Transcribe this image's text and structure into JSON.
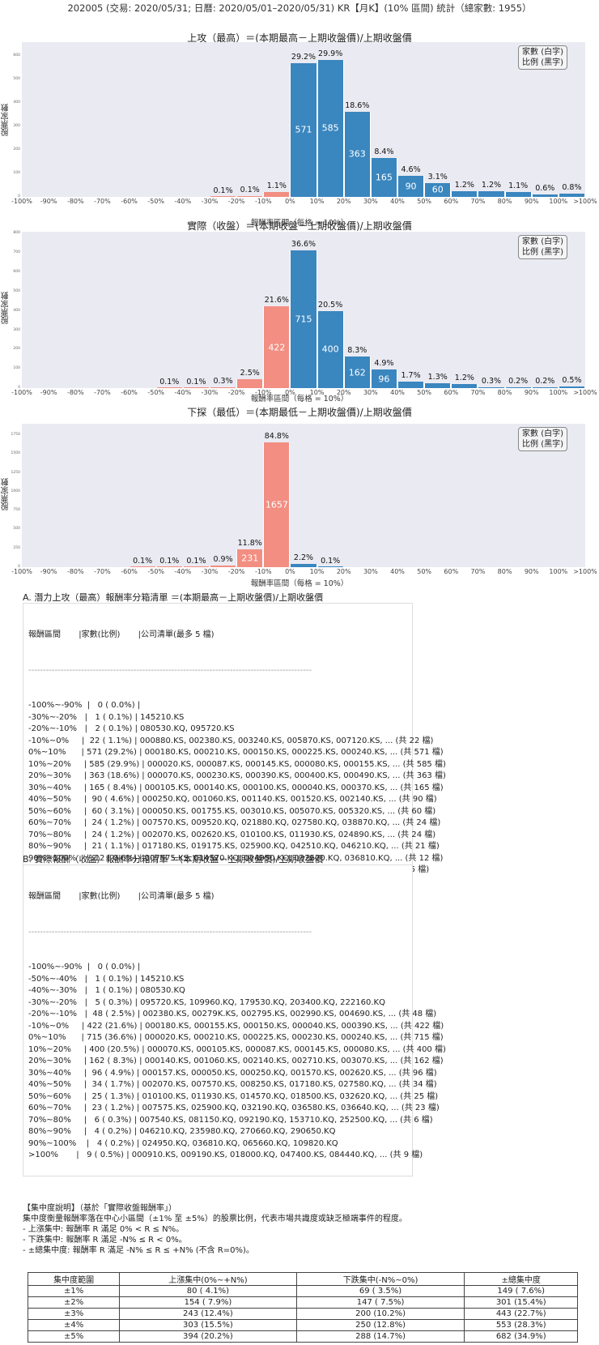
{
  "page": {
    "title": "202005 (交易: 2020/05/31; 日曆: 2020/05/01–2020/05/31) KR【月K】(10% 區間) 統計（總家數: 1955）"
  },
  "legend": {
    "line1": "家數 (白字)",
    "line2": "比例 (黑字)"
  },
  "axis": {
    "ylabel": "股票家數",
    "xlabel": "報酬率區間（每格 = 10%）"
  },
  "colors": {
    "positive": "#3a86bf",
    "negative": "#f28e82",
    "plot_bg": "#eaeaf2"
  },
  "chart_data": [
    {
      "type": "bar",
      "title": "上攻（最高）＝(本期最高－上期收盤價)/上期收盤價",
      "xlabel": "報酬率區間（每格 = 10%）",
      "ylabel": "股票家數",
      "ylim": [
        0,
        660
      ],
      "yticks": [
        0,
        100,
        200,
        300,
        400,
        500,
        600
      ],
      "categories": [
        "-100%~-90%",
        "-90%~-80%",
        "-80%~-70%",
        "-70%~-60%",
        "-60%~-50%",
        "-50%~-40%",
        "-40%~-30%",
        "-30%~-20%",
        "-20%~-10%",
        "-10%~0%",
        "0%~10%",
        "10%~20%",
        "20%~30%",
        "30%~40%",
        "40%~50%",
        "50%~60%",
        "60%~70%",
        "70%~80%",
        "80%~90%",
        "90%~100%",
        ">100%"
      ],
      "values": [
        0,
        0,
        0,
        0,
        0,
        0,
        0,
        1,
        2,
        22,
        571,
        585,
        363,
        165,
        90,
        60,
        24,
        24,
        21,
        12,
        15
      ],
      "percent_labels": [
        "",
        "",
        "",
        "",
        "",
        "",
        "",
        "0.1%",
        "0.1%",
        "1.1%",
        "29.2%",
        "29.9%",
        "18.6%",
        "8.4%",
        "4.6%",
        "3.1%",
        "1.2%",
        "1.2%",
        "1.1%",
        "0.6%",
        "0.8%"
      ],
      "xtick_labels": [
        "-100%",
        "-90%",
        "-80%",
        "-70%",
        "-60%",
        "-50%",
        "-40%",
        "-30%",
        "-20%",
        "-10%",
        "0%",
        "10%",
        "20%",
        "30%",
        "40%",
        "50%",
        "60%",
        "70%",
        "80%",
        "90%",
        "100%",
        ">100%"
      ],
      "legend": [
        "家數 (白字)",
        "比例 (黑字)"
      ],
      "grid": false
    },
    {
      "type": "bar",
      "title": "實際（收盤）＝(本期收盤－上期收盤價)/上期收盤價",
      "xlabel": "報酬率區間（每格 = 10%）",
      "ylabel": "股票家數",
      "ylim": [
        0,
        810
      ],
      "yticks": [
        0,
        100,
        200,
        300,
        400,
        500,
        600,
        700,
        800
      ],
      "categories": [
        "-100%~-90%",
        "-90%~-80%",
        "-80%~-70%",
        "-70%~-60%",
        "-60%~-50%",
        "-50%~-40%",
        "-40%~-30%",
        "-30%~-20%",
        "-20%~-10%",
        "-10%~0%",
        "0%~10%",
        "10%~20%",
        "20%~30%",
        "30%~40%",
        "40%~50%",
        "50%~60%",
        "60%~70%",
        "70%~80%",
        "80%~90%",
        "90%~100%",
        ">100%"
      ],
      "values": [
        0,
        0,
        0,
        0,
        0,
        1,
        1,
        5,
        48,
        422,
        715,
        400,
        162,
        96,
        34,
        25,
        23,
        6,
        4,
        4,
        9
      ],
      "percent_labels": [
        "",
        "",
        "",
        "",
        "",
        "0.1%",
        "0.1%",
        "0.3%",
        "2.5%",
        "21.6%",
        "36.6%",
        "20.5%",
        "8.3%",
        "4.9%",
        "1.7%",
        "1.3%",
        "1.2%",
        "0.3%",
        "0.2%",
        "0.2%",
        "0.5%"
      ],
      "xtick_labels": [
        "-100%",
        "-90%",
        "-80%",
        "-70%",
        "-60%",
        "-50%",
        "-40%",
        "-30%",
        "-20%",
        "-10%",
        "0%",
        "10%",
        "20%",
        "30%",
        "40%",
        "50%",
        "60%",
        "70%",
        "80%",
        "90%",
        "100%",
        ">100%"
      ],
      "legend": [
        "家數 (白字)",
        "比例 (黑字)"
      ],
      "grid": false
    },
    {
      "type": "bar",
      "title": "下探（最低）＝(本期最低－上期收盤價)/上期收盤價",
      "xlabel": "報酬率區間（每格 = 10%）",
      "ylabel": "股票家數",
      "ylim": [
        0,
        1900
      ],
      "yticks": [
        0,
        250,
        500,
        750,
        1000,
        1250,
        1500,
        1750
      ],
      "categories": [
        "-100%~-90%",
        "-90%~-80%",
        "-80%~-70%",
        "-70%~-60%",
        "-60%~-50%",
        "-50%~-40%",
        "-40%~-30%",
        "-30%~-20%",
        "-20%~-10%",
        "-10%~0%",
        "0%~10%",
        "10%~20%",
        "20%~30%",
        "30%~40%",
        "40%~50%",
        "50%~60%",
        "60%~70%",
        "70%~80%",
        "80%~90%",
        "90%~100%",
        ">100%"
      ],
      "values": [
        0,
        0,
        0,
        0,
        1,
        1,
        1,
        18,
        231,
        1657,
        43,
        1,
        0,
        0,
        0,
        0,
        0,
        0,
        0,
        0,
        0
      ],
      "percent_labels": [
        "",
        "",
        "",
        "",
        "0.1%",
        "0.1%",
        "0.1%",
        "0.9%",
        "11.8%",
        "84.8%",
        "2.2%",
        "0.1%",
        "",
        "",
        "",
        "",
        "",
        "",
        "",
        "",
        ""
      ],
      "xtick_labels": [
        "-100%",
        "-90%",
        "-80%",
        "-70%",
        "-60%",
        "-50%",
        "-40%",
        "-30%",
        "-20%",
        "-10%",
        "0%",
        "10%",
        "20%",
        "30%",
        "40%",
        "50%",
        "60%",
        "70%",
        "80%",
        "90%",
        "100%",
        ">100%"
      ],
      "legend": [
        "家數 (白字)",
        "比例 (黑字)"
      ],
      "grid": false
    }
  ],
  "list_a": {
    "title": "A. 潛力上攻（最高）報酬率分箱清單 ＝(本期最高－上期收盤價)/上期收盤價",
    "header": "報酬區間       |家數(比例)       |公司清單(最多 5 檔)",
    "divider": "-------------------------------------------------------------------------------------------------",
    "rows": [
      "-100%~-90%  |   0 ( 0.0%) |",
      "-30%~-20%   |   1 ( 0.1%) | 145210.KS",
      "-20%~-10%   |   2 ( 0.1%) | 080530.KQ, 095720.KS",
      "-10%~0%     |  22 ( 1.1%) | 000880.KS, 002380.KS, 003240.KS, 005870.KS, 007120.KS, ... (共 22 檔)",
      "0%~10%      | 571 (29.2%) | 000180.KS, 000210.KS, 000150.KS, 000225.KS, 000240.KS, ... (共 571 檔)",
      "10%~20%     | 585 (29.9%) | 000020.KS, 000087.KS, 000145.KS, 000080.KS, 000155.KS, ... (共 585 檔)",
      "20%~30%     | 363 (18.6%) | 000070.KS, 000230.KS, 000390.KS, 000400.KS, 000490.KS, ... (共 363 檔)",
      "30%~40%     | 165 ( 8.4%) | 000105.KS, 000140.KS, 000100.KS, 000040.KS, 000370.KS, ... (共 165 檔)",
      "40%~50%     |  90 ( 4.6%) | 000250.KQ, 001060.KS, 001140.KS, 001520.KS, 002140.KS, ... (共 90 檔)",
      "50%~60%     |  60 ( 3.1%) | 000050.KS, 001755.KS, 003010.KS, 005070.KS, 005320.KS, ... (共 60 檔)",
      "60%~70%     |  24 ( 1.2%) | 007570.KS, 009520.KQ, 021880.KQ, 027580.KQ, 038870.KQ, ... (共 24 檔)",
      "70%~80%     |  24 ( 1.2%) | 002070.KS, 002620.KS, 010100.KS, 011930.KS, 024890.KS, ... (共 24 檔)",
      "80%~90%     |  21 ( 1.1%) | 017180.KS, 019175.KS, 025900.KQ, 042510.KQ, 046210.KQ, ... (共 21 檔)",
      "90%~100%    |  12 ( 0.6%) | 007575.KS, 014570.KQ, 024950.KQ, 032620.KQ, 036810.KQ, ... (共 12 檔)",
      ">100%       |  15 ( 0.8%) | 000157.KS, 000910.KS, 007540.KS, 009190.KS, 018000.KQ, ... (共 15 檔)"
    ]
  },
  "list_b": {
    "title": "B. 實際報酬（收盤）報酬率分箱清單 ＝(本期收盤－上期收盤價)/上期收盤價",
    "header": "報酬區間       |家數(比例)       |公司清單(最多 5 檔)",
    "divider": "-------------------------------------------------------------------------------------------------",
    "rows": [
      "-100%~-90%  |   0 ( 0.0%) |",
      "-50%~-40%   |   1 ( 0.1%) | 145210.KS",
      "-40%~-30%   |   1 ( 0.1%) | 080530.KQ",
      "-30%~-20%   |   5 ( 0.3%) | 095720.KS, 109960.KQ, 179530.KQ, 203400.KQ, 222160.KQ",
      "-20%~-10%   |  48 ( 2.5%) | 002380.KS, 00279K.KS, 002795.KS, 002990.KS, 004690.KS, ... (共 48 檔)",
      "-10%~0%     | 422 (21.6%) | 000180.KS, 000155.KS, 000150.KS, 000040.KS, 000390.KS, ... (共 422 檔)",
      "0%~10%      | 715 (36.6%) | 000020.KS, 000210.KS, 000225.KS, 000230.KS, 000240.KS, ... (共 715 檔)",
      "10%~20%     | 400 (20.5%) | 000070.KS, 000105.KS, 000087.KS, 000145.KS, 000080.KS, ... (共 400 檔)",
      "20%~30%     | 162 ( 8.3%) | 000140.KS, 001060.KS, 002140.KS, 002710.KS, 003070.KS, ... (共 162 檔)",
      "30%~40%     |  96 ( 4.9%) | 000157.KS, 000050.KS, 000250.KQ, 001570.KS, 002620.KS, ... (共 96 檔)",
      "40%~50%     |  34 ( 1.7%) | 002070.KS, 007570.KS, 008250.KS, 017180.KS, 027580.KQ, ... (共 34 檔)",
      "50%~60%     |  25 ( 1.3%) | 010100.KS, 011930.KS, 014570.KQ, 018500.KS, 032620.KQ, ... (共 25 檔)",
      "60%~70%     |  23 ( 1.2%) | 007575.KS, 025900.KQ, 032190.KQ, 036580.KS, 036640.KQ, ... (共 23 檔)",
      "70%~80%     |   6 ( 0.3%) | 007540.KS, 081150.KQ, 092190.KQ, 153710.KQ, 252500.KQ, ... (共 6 檔)",
      "80%~90%     |   4 ( 0.2%) | 046210.KQ, 235980.KQ, 270660.KQ, 290650.KQ",
      "90%~100%    |   4 ( 0.2%) | 024950.KQ, 036810.KQ, 065660.KQ, 109820.KQ",
      ">100%       |   9 ( 0.5%) | 000910.KS, 009190.KS, 018000.KQ, 047400.KS, 084440.KQ, ... (共 9 檔)"
    ]
  },
  "concentration": {
    "heading": "【集中度說明】（基於「實際收盤報酬率」）",
    "description": "集中度衡量報酬率落在中心小區間（±1% 至 ±5%）的股票比例，代表市場共識度或缺乏極端事件的程度。",
    "rules": [
      " - 上漲集中: 報酬率 R 滿足 0% < R ≤ N%。",
      " - 下跌集中: 報酬率 R 滿足 -N% ≤ R < 0%。",
      " - ±總集中度: 報酬率 R 滿足 -N% ≤ R ≤ +N% (不含 R=0%)。"
    ],
    "columns": [
      "集中度範圍",
      "上漲集中(0%~+N%)",
      "下跌集中(-N%~0%)",
      "±總集中度"
    ],
    "rows": [
      [
        "±1%",
        "80 ( 4.1%)",
        "69 ( 3.5%)",
        "149 ( 7.6%)"
      ],
      [
        "±2%",
        "154 ( 7.9%)",
        "147 ( 7.5%)",
        "301 (15.4%)"
      ],
      [
        "±3%",
        "243 (12.4%)",
        "200 (10.2%)",
        "443 (22.7%)"
      ],
      [
        "±4%",
        "303 (15.5%)",
        "250 (12.8%)",
        "553 (28.3%)"
      ],
      [
        "±5%",
        "394 (20.2%)",
        "288 (14.7%)",
        "682 (34.9%)"
      ]
    ]
  }
}
